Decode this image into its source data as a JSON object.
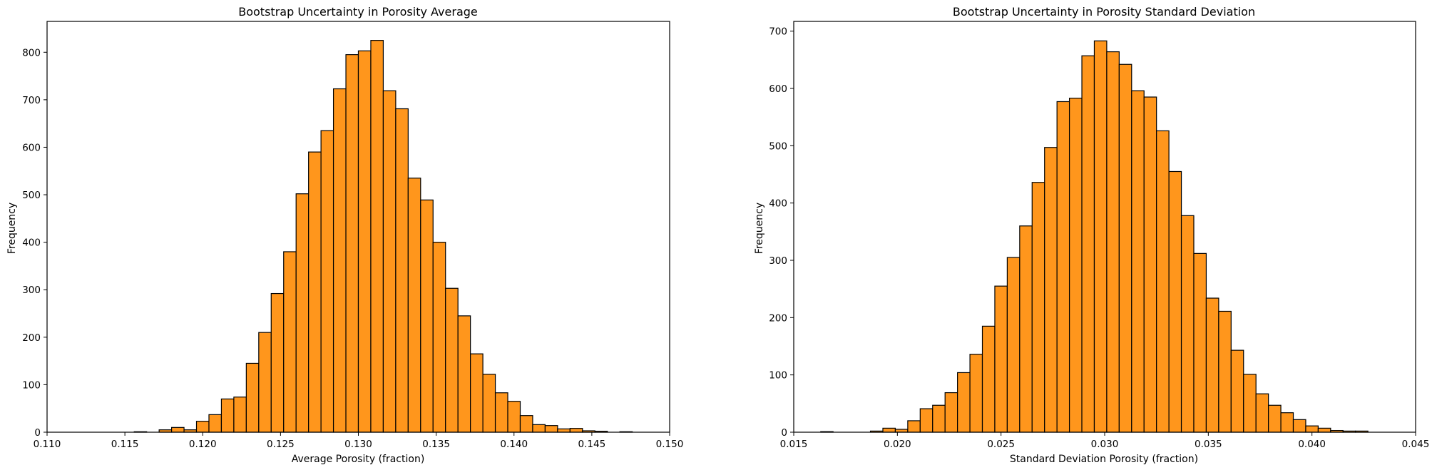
{
  "chart_data": [
    {
      "type": "bar",
      "title": "Bootstrap Uncertainty in Porosity Average",
      "xlabel": "Average Porosity (fraction)",
      "ylabel": "Frequency",
      "xlim": [
        0.11,
        0.15
      ],
      "ylim": [
        0,
        865
      ],
      "xticks": [
        "0.110",
        "0.115",
        "0.120",
        "0.125",
        "0.130",
        "0.135",
        "0.140",
        "0.145",
        "0.150"
      ],
      "yticks": [
        "0",
        "100",
        "200",
        "300",
        "400",
        "500",
        "600",
        "700",
        "800"
      ],
      "color": "#ff961c",
      "bins": [
        {
          "x0": 0.1156,
          "x1": 0.1164,
          "count": 1
        },
        {
          "x0": 0.1172,
          "x1": 0.118,
          "count": 5
        },
        {
          "x0": 0.118,
          "x1": 0.1188,
          "count": 10
        },
        {
          "x0": 0.1188,
          "x1": 0.1196,
          "count": 5
        },
        {
          "x0": 0.1196,
          "x1": 0.1204,
          "count": 23
        },
        {
          "x0": 0.1204,
          "x1": 0.1212,
          "count": 37
        },
        {
          "x0": 0.1212,
          "x1": 0.122,
          "count": 70
        },
        {
          "x0": 0.122,
          "x1": 0.1228,
          "count": 74
        },
        {
          "x0": 0.1228,
          "x1": 0.1236,
          "count": 145
        },
        {
          "x0": 0.1236,
          "x1": 0.1244,
          "count": 210
        },
        {
          "x0": 0.1244,
          "x1": 0.1252,
          "count": 292
        },
        {
          "x0": 0.1252,
          "x1": 0.126,
          "count": 380
        },
        {
          "x0": 0.126,
          "x1": 0.1268,
          "count": 502
        },
        {
          "x0": 0.1268,
          "x1": 0.1276,
          "count": 590
        },
        {
          "x0": 0.1276,
          "x1": 0.1284,
          "count": 635
        },
        {
          "x0": 0.1284,
          "x1": 0.1292,
          "count": 723
        },
        {
          "x0": 0.1292,
          "x1": 0.13,
          "count": 795
        },
        {
          "x0": 0.13,
          "x1": 0.1308,
          "count": 803
        },
        {
          "x0": 0.1308,
          "x1": 0.1316,
          "count": 825
        },
        {
          "x0": 0.1316,
          "x1": 0.1324,
          "count": 719
        },
        {
          "x0": 0.1324,
          "x1": 0.1332,
          "count": 681
        },
        {
          "x0": 0.1332,
          "x1": 0.134,
          "count": 535
        },
        {
          "x0": 0.134,
          "x1": 0.1348,
          "count": 489
        },
        {
          "x0": 0.1348,
          "x1": 0.1356,
          "count": 400
        },
        {
          "x0": 0.1356,
          "x1": 0.1364,
          "count": 303
        },
        {
          "x0": 0.1364,
          "x1": 0.1372,
          "count": 245
        },
        {
          "x0": 0.1372,
          "x1": 0.138,
          "count": 165
        },
        {
          "x0": 0.138,
          "x1": 0.1388,
          "count": 122
        },
        {
          "x0": 0.1388,
          "x1": 0.1396,
          "count": 83
        },
        {
          "x0": 0.1396,
          "x1": 0.1404,
          "count": 65
        },
        {
          "x0": 0.1404,
          "x1": 0.1412,
          "count": 35
        },
        {
          "x0": 0.1412,
          "x1": 0.142,
          "count": 16
        },
        {
          "x0": 0.142,
          "x1": 0.1428,
          "count": 14
        },
        {
          "x0": 0.1428,
          "x1": 0.1436,
          "count": 7
        },
        {
          "x0": 0.1436,
          "x1": 0.1444,
          "count": 8
        },
        {
          "x0": 0.1444,
          "x1": 0.1452,
          "count": 3
        },
        {
          "x0": 0.1452,
          "x1": 0.146,
          "count": 2
        },
        {
          "x0": 0.1468,
          "x1": 0.1476,
          "count": 1
        }
      ]
    },
    {
      "type": "bar",
      "title": "Bootstrap Uncertainty in Porosity Standard Deviation",
      "xlabel": "Standard Deviation Porosity (fraction)",
      "ylabel": "Frequency",
      "xlim": [
        0.015,
        0.045
      ],
      "ylim": [
        0,
        717
      ],
      "xticks": [
        "0.015",
        "0.020",
        "0.025",
        "0.030",
        "0.035",
        "0.040",
        "0.045"
      ],
      "yticks": [
        "0",
        "100",
        "200",
        "300",
        "400",
        "500",
        "600",
        "700"
      ],
      "color": "#ff961c",
      "bins": [
        {
          "x0": 0.0163,
          "x1": 0.0169,
          "count": 1
        },
        {
          "x0": 0.0187,
          "x1": 0.0193,
          "count": 2
        },
        {
          "x0": 0.0193,
          "x1": 0.0199,
          "count": 7
        },
        {
          "x0": 0.0199,
          "x1": 0.0205,
          "count": 5
        },
        {
          "x0": 0.0205,
          "x1": 0.0211,
          "count": 20
        },
        {
          "x0": 0.0211,
          "x1": 0.0217,
          "count": 41
        },
        {
          "x0": 0.0217,
          "x1": 0.0223,
          "count": 47
        },
        {
          "x0": 0.0223,
          "x1": 0.0229,
          "count": 69
        },
        {
          "x0": 0.0229,
          "x1": 0.0235,
          "count": 104
        },
        {
          "x0": 0.0235,
          "x1": 0.0241,
          "count": 136
        },
        {
          "x0": 0.0241,
          "x1": 0.0247,
          "count": 185
        },
        {
          "x0": 0.0247,
          "x1": 0.0253,
          "count": 255
        },
        {
          "x0": 0.0253,
          "x1": 0.0259,
          "count": 305
        },
        {
          "x0": 0.0259,
          "x1": 0.0265,
          "count": 360
        },
        {
          "x0": 0.0265,
          "x1": 0.0271,
          "count": 436
        },
        {
          "x0": 0.0271,
          "x1": 0.0277,
          "count": 497
        },
        {
          "x0": 0.0277,
          "x1": 0.0283,
          "count": 577
        },
        {
          "x0": 0.0283,
          "x1": 0.0289,
          "count": 583
        },
        {
          "x0": 0.0289,
          "x1": 0.0295,
          "count": 657
        },
        {
          "x0": 0.0295,
          "x1": 0.0301,
          "count": 683
        },
        {
          "x0": 0.0301,
          "x1": 0.0307,
          "count": 664
        },
        {
          "x0": 0.0307,
          "x1": 0.0313,
          "count": 642
        },
        {
          "x0": 0.0313,
          "x1": 0.0319,
          "count": 596
        },
        {
          "x0": 0.0319,
          "x1": 0.0325,
          "count": 585
        },
        {
          "x0": 0.0325,
          "x1": 0.0331,
          "count": 526
        },
        {
          "x0": 0.0331,
          "x1": 0.0337,
          "count": 455
        },
        {
          "x0": 0.0337,
          "x1": 0.0343,
          "count": 378
        },
        {
          "x0": 0.0343,
          "x1": 0.0349,
          "count": 312
        },
        {
          "x0": 0.0349,
          "x1": 0.0355,
          "count": 234
        },
        {
          "x0": 0.0355,
          "x1": 0.0361,
          "count": 211
        },
        {
          "x0": 0.0361,
          "x1": 0.0367,
          "count": 143
        },
        {
          "x0": 0.0367,
          "x1": 0.0373,
          "count": 101
        },
        {
          "x0": 0.0373,
          "x1": 0.0379,
          "count": 67
        },
        {
          "x0": 0.0379,
          "x1": 0.0385,
          "count": 47
        },
        {
          "x0": 0.0385,
          "x1": 0.0391,
          "count": 34
        },
        {
          "x0": 0.0391,
          "x1": 0.0397,
          "count": 22
        },
        {
          "x0": 0.0397,
          "x1": 0.0403,
          "count": 11
        },
        {
          "x0": 0.0403,
          "x1": 0.0409,
          "count": 7
        },
        {
          "x0": 0.0409,
          "x1": 0.0415,
          "count": 3
        },
        {
          "x0": 0.0415,
          "x1": 0.0421,
          "count": 2
        },
        {
          "x0": 0.0421,
          "x1": 0.0427,
          "count": 2
        }
      ]
    }
  ]
}
